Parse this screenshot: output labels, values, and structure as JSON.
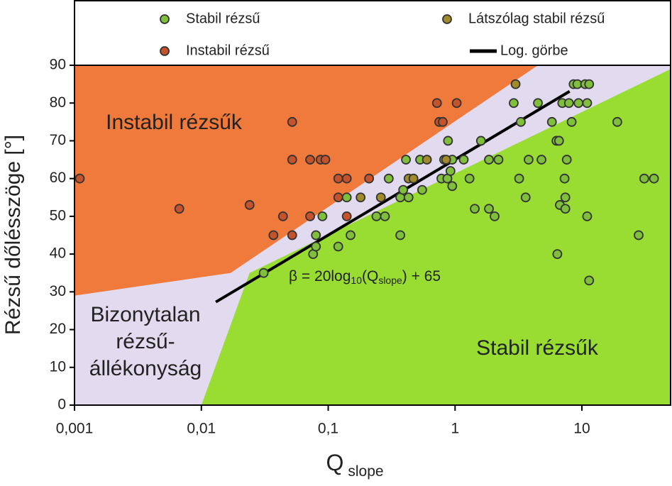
{
  "chart_data": {
    "type": "scatter",
    "x_label": {
      "main": "Q",
      "sub": "slope"
    },
    "y_label": "Rézsű dőlésszöge [°]",
    "x_scale": "log",
    "xlim": [
      0.001,
      50
    ],
    "xticks": [
      {
        "value": 0.001,
        "label": "0,001"
      },
      {
        "value": 0.01,
        "label": "0,01"
      },
      {
        "value": 0.1,
        "label": "0,1"
      },
      1,
      10
    ],
    "ylim": [
      0,
      90
    ],
    "yticks": [
      0,
      10,
      20,
      30,
      40,
      50,
      60,
      70,
      80,
      90
    ],
    "background": "#e2daee",
    "regions": [
      {
        "lines": [
          "Instabil rézsűk"
        ],
        "color": "#f07a3c",
        "x": [
          0.001,
          4.5,
          0.017,
          0.001
        ],
        "y": [
          90,
          90,
          35,
          29
        ]
      },
      {
        "lines": [
          "Stabil rézsűk"
        ],
        "color": "#99dd33",
        "x": [
          0.01,
          0.024,
          50,
          50
        ],
        "y": [
          0,
          35,
          89,
          0
        ]
      },
      {
        "lines": [
          "Bizonytalan",
          "rézsű-",
          "állékonyság"
        ]
      }
    ],
    "series": [
      {
        "name": "Stabil rézsű",
        "color": "#80bf3c",
        "x": [
          0.031,
          0.076,
          0.08,
          0.08,
          0.09,
          0.12,
          0.15,
          0.14,
          0.24,
          0.28,
          0.3,
          0.37,
          0.37,
          0.39,
          0.41,
          0.43,
          0.53,
          0.55,
          0.78,
          0.82,
          0.87,
          0.92,
          0.95,
          0.88,
          0.95,
          1.17,
          1.3,
          1.43,
          1.6,
          1.85,
          1.85,
          2.05,
          2.2,
          2.9,
          3.2,
          3.3,
          3.6,
          3.8,
          4.5,
          4.8,
          5.8,
          6.3,
          6.4,
          6.6,
          6.7,
          7,
          7.3,
          7.4,
          7.4,
          7.6,
          7.9,
          8.3,
          8.6,
          9.2,
          9.4,
          10.6,
          11,
          11,
          11.4,
          11.4,
          19,
          28,
          31,
          37
        ],
        "values": [
          35,
          40,
          42,
          45,
          50,
          42,
          45,
          55,
          50,
          50,
          60,
          45,
          55,
          57,
          65,
          55,
          65,
          57,
          60,
          65,
          60,
          62,
          58,
          70,
          65,
          65,
          60,
          52,
          70,
          52,
          65,
          50,
          65,
          80,
          60,
          75,
          55,
          65,
          80,
          65,
          75,
          70,
          40,
          70,
          53,
          80,
          60,
          55,
          52,
          65,
          80,
          75,
          85,
          85,
          80,
          85,
          80,
          50,
          85,
          33,
          75,
          45,
          60,
          60
        ]
      },
      {
        "name": "Látszólag stabil rézsű",
        "color": "#a08a2c",
        "x": [
          0.18,
          0.26,
          0.43,
          0.47,
          0.6,
          0.85,
          3.0
        ],
        "values": [
          55,
          55,
          60,
          60,
          65,
          65,
          85
        ]
      },
      {
        "name": "Instabil rézsű",
        "color": "#c4532c",
        "x": [
          0.0011,
          0.0067,
          0.024,
          0.037,
          0.044,
          0.052,
          0.052,
          0.052,
          0.072,
          0.072,
          0.087,
          0.095,
          0.12,
          0.14,
          0.12,
          0.14,
          0.21,
          0.72,
          0.75,
          0.8,
          1.03
        ],
        "values": [
          60,
          52,
          53,
          45,
          50,
          65,
          75,
          45,
          50,
          65,
          65,
          65,
          60,
          60,
          55,
          50,
          60,
          80,
          75,
          75,
          80
        ]
      }
    ],
    "fit_line": {
      "name": "Log. görbe",
      "color": "#000000",
      "x": [
        0.013,
        8
      ],
      "values": [
        27.3,
        83.1
      ],
      "equation": {
        "a": "β = 20log",
        "b": "10",
        "c": "(Q",
        "d": "slope",
        "e": ") + 65"
      }
    }
  }
}
